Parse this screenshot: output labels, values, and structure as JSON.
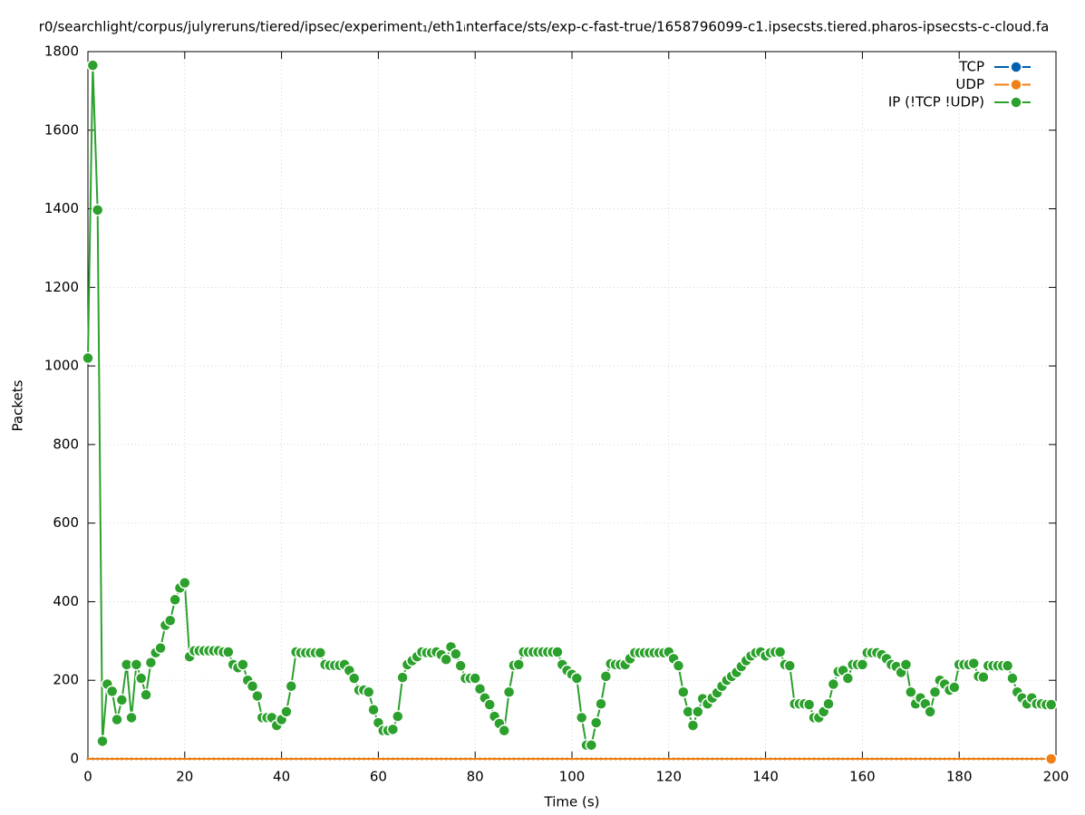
{
  "chart_data": {
    "type": "line",
    "title": "r0/searchlight/corpus/julyreruns/tiered/ipsec/experiment₁/eth1ᵢnterface/sts/exp-c-fast-true/1658796099-c1.ipsecsts.tiered.pharos-ipsecsts-c-cloud.fa",
    "xlabel": "Time (s)",
    "ylabel": "Packets",
    "xlim": [
      0,
      200
    ],
    "xticks": [
      0,
      20,
      40,
      60,
      80,
      100,
      120,
      140,
      160,
      180,
      200
    ],
    "ylim": [
      0,
      1800
    ],
    "yticks": [
      0,
      200,
      400,
      600,
      800,
      1000,
      1200,
      1400,
      1600,
      1800
    ],
    "grid": true,
    "legend": "top-right",
    "x": [
      0,
      1,
      2,
      3,
      4,
      5,
      6,
      7,
      8,
      9,
      10,
      11,
      12,
      13,
      14,
      15,
      16,
      17,
      18,
      19,
      20,
      21,
      22,
      23,
      24,
      25,
      26,
      27,
      28,
      29,
      30,
      31,
      32,
      33,
      34,
      35,
      36,
      37,
      38,
      39,
      40,
      41,
      42,
      43,
      44,
      45,
      46,
      47,
      48,
      49,
      50,
      51,
      52,
      53,
      54,
      55,
      56,
      57,
      58,
      59,
      60,
      61,
      62,
      63,
      64,
      65,
      66,
      67,
      68,
      69,
      70,
      71,
      72,
      73,
      74,
      75,
      76,
      77,
      78,
      79,
      80,
      81,
      82,
      83,
      84,
      85,
      86,
      87,
      88,
      89,
      90,
      91,
      92,
      93,
      94,
      95,
      96,
      97,
      98,
      99,
      100,
      101,
      102,
      103,
      104,
      105,
      106,
      107,
      108,
      109,
      110,
      111,
      112,
      113,
      114,
      115,
      116,
      117,
      118,
      119,
      120,
      121,
      122,
      123,
      124,
      125,
      126,
      127,
      128,
      129,
      130,
      131,
      132,
      133,
      134,
      135,
      136,
      137,
      138,
      139,
      140,
      141,
      142,
      143,
      144,
      145,
      146,
      147,
      148,
      149,
      150,
      151,
      152,
      153,
      154,
      155,
      156,
      157,
      158,
      159,
      160,
      161,
      162,
      163,
      164,
      165,
      166,
      167,
      168,
      169,
      170,
      171,
      172,
      173,
      174,
      175,
      176,
      177,
      178,
      179,
      180,
      181,
      182,
      183,
      184,
      185,
      186,
      187,
      188,
      189,
      190,
      191,
      192,
      193,
      194,
      195,
      196,
      197,
      198,
      199
    ],
    "series": [
      {
        "name": "TCP",
        "color": "#0060ad",
        "values": [
          0,
          0,
          0,
          0,
          0,
          0,
          0,
          0,
          0,
          0,
          0,
          0,
          0,
          0,
          0,
          0,
          0,
          0,
          0,
          0,
          0,
          0,
          0,
          0,
          0,
          0,
          0,
          0,
          0,
          0,
          0,
          0,
          0,
          0,
          0,
          0,
          0,
          0,
          0,
          0,
          0,
          0,
          0,
          0,
          0,
          0,
          0,
          0,
          0,
          0,
          0,
          0,
          0,
          0,
          0,
          0,
          0,
          0,
          0,
          0,
          0,
          0,
          0,
          0,
          0,
          0,
          0,
          0,
          0,
          0,
          0,
          0,
          0,
          0,
          0,
          0,
          0,
          0,
          0,
          0,
          0,
          0,
          0,
          0,
          0,
          0,
          0,
          0,
          0,
          0,
          0,
          0,
          0,
          0,
          0,
          0,
          0,
          0,
          0,
          0,
          0,
          0,
          0,
          0,
          0,
          0,
          0,
          0,
          0,
          0,
          0,
          0,
          0,
          0,
          0,
          0,
          0,
          0,
          0,
          0,
          0,
          0,
          0,
          0,
          0,
          0,
          0,
          0,
          0,
          0,
          0,
          0,
          0,
          0,
          0,
          0,
          0,
          0,
          0,
          0,
          0,
          0,
          0,
          0,
          0,
          0,
          0,
          0,
          0,
          0,
          0,
          0,
          0,
          0,
          0,
          0,
          0,
          0,
          0,
          0,
          0,
          0,
          0,
          0,
          0,
          0,
          0,
          0,
          0,
          0,
          0,
          0,
          0,
          0,
          0,
          0,
          0,
          0,
          0,
          0,
          0,
          0,
          0,
          0,
          0,
          0,
          0,
          0,
          0,
          0,
          0,
          0,
          0,
          0,
          0,
          0,
          0,
          0,
          0,
          0
        ]
      },
      {
        "name": "UDP",
        "color": "#f07f16",
        "values": [
          0,
          0,
          0,
          0,
          0,
          0,
          0,
          0,
          0,
          0,
          0,
          0,
          0,
          0,
          0,
          0,
          0,
          0,
          0,
          0,
          0,
          0,
          0,
          0,
          0,
          0,
          0,
          0,
          0,
          0,
          0,
          0,
          0,
          0,
          0,
          0,
          0,
          0,
          0,
          0,
          0,
          0,
          0,
          0,
          0,
          0,
          0,
          0,
          0,
          0,
          0,
          0,
          0,
          0,
          0,
          0,
          0,
          0,
          0,
          0,
          0,
          0,
          0,
          0,
          0,
          0,
          0,
          0,
          0,
          0,
          0,
          0,
          0,
          0,
          0,
          0,
          0,
          0,
          0,
          0,
          0,
          0,
          0,
          0,
          0,
          0,
          0,
          0,
          0,
          0,
          0,
          0,
          0,
          0,
          0,
          0,
          0,
          0,
          0,
          0,
          0,
          0,
          0,
          0,
          0,
          0,
          0,
          0,
          0,
          0,
          0,
          0,
          0,
          0,
          0,
          0,
          0,
          0,
          0,
          0,
          0,
          0,
          0,
          0,
          0,
          0,
          0,
          0,
          0,
          0,
          0,
          0,
          0,
          0,
          0,
          0,
          0,
          0,
          0,
          0,
          0,
          0,
          0,
          0,
          0,
          0,
          0,
          0,
          0,
          0,
          0,
          0,
          0,
          0,
          0,
          0,
          0,
          0,
          0,
          0,
          0,
          0,
          0,
          0,
          0,
          0,
          0,
          0,
          0,
          0,
          0,
          0,
          0,
          0,
          0,
          0,
          0,
          0,
          0,
          0,
          0,
          0,
          0,
          0,
          0,
          0,
          0,
          0,
          0,
          0,
          0,
          0,
          0,
          0,
          0,
          0,
          0,
          0,
          0,
          0
        ]
      },
      {
        "name": "IP (!TCP  !UDP)",
        "color": "#2ca02c",
        "values": [
          1020,
          1765,
          1397,
          45,
          190,
          172,
          100,
          150,
          240,
          105,
          240,
          205,
          163,
          245,
          270,
          282,
          340,
          352,
          405,
          435,
          448,
          260,
          275,
          275,
          275,
          275,
          275,
          275,
          272,
          272,
          240,
          232,
          240,
          200,
          185,
          160,
          105,
          105,
          105,
          85,
          100,
          120,
          185,
          272,
          270,
          270,
          270,
          270,
          270,
          240,
          238,
          238,
          238,
          240,
          225,
          205,
          175,
          175,
          170,
          125,
          92,
          72,
          72,
          75,
          108,
          207,
          240,
          250,
          260,
          272,
          270,
          270,
          272,
          265,
          253,
          285,
          267,
          237,
          205,
          205,
          205,
          178,
          155,
          138,
          108,
          90,
          72,
          170,
          238,
          240,
          272,
          272,
          272,
          272,
          272,
          272,
          272,
          272,
          240,
          225,
          215,
          205,
          105,
          35,
          35,
          92,
          140,
          210,
          242,
          240,
          240,
          240,
          255,
          270,
          270,
          270,
          270,
          270,
          270,
          270,
          272,
          255,
          237,
          170,
          120,
          85,
          120,
          153,
          140,
          155,
          168,
          185,
          200,
          210,
          220,
          235,
          250,
          262,
          270,
          272,
          262,
          270,
          272,
          272,
          240,
          237,
          140,
          140,
          140,
          138,
          105,
          105,
          120,
          140,
          190,
          222,
          225,
          205,
          240,
          240,
          240,
          270,
          270,
          270,
          265,
          255,
          240,
          235,
          220,
          240,
          170,
          140,
          155,
          140,
          120,
          170,
          200,
          190,
          175,
          182,
          240,
          240,
          240,
          243,
          210,
          208,
          237,
          237,
          237,
          237,
          237,
          205,
          170,
          155,
          140,
          155,
          140,
          140,
          138,
          138
        ]
      }
    ]
  }
}
